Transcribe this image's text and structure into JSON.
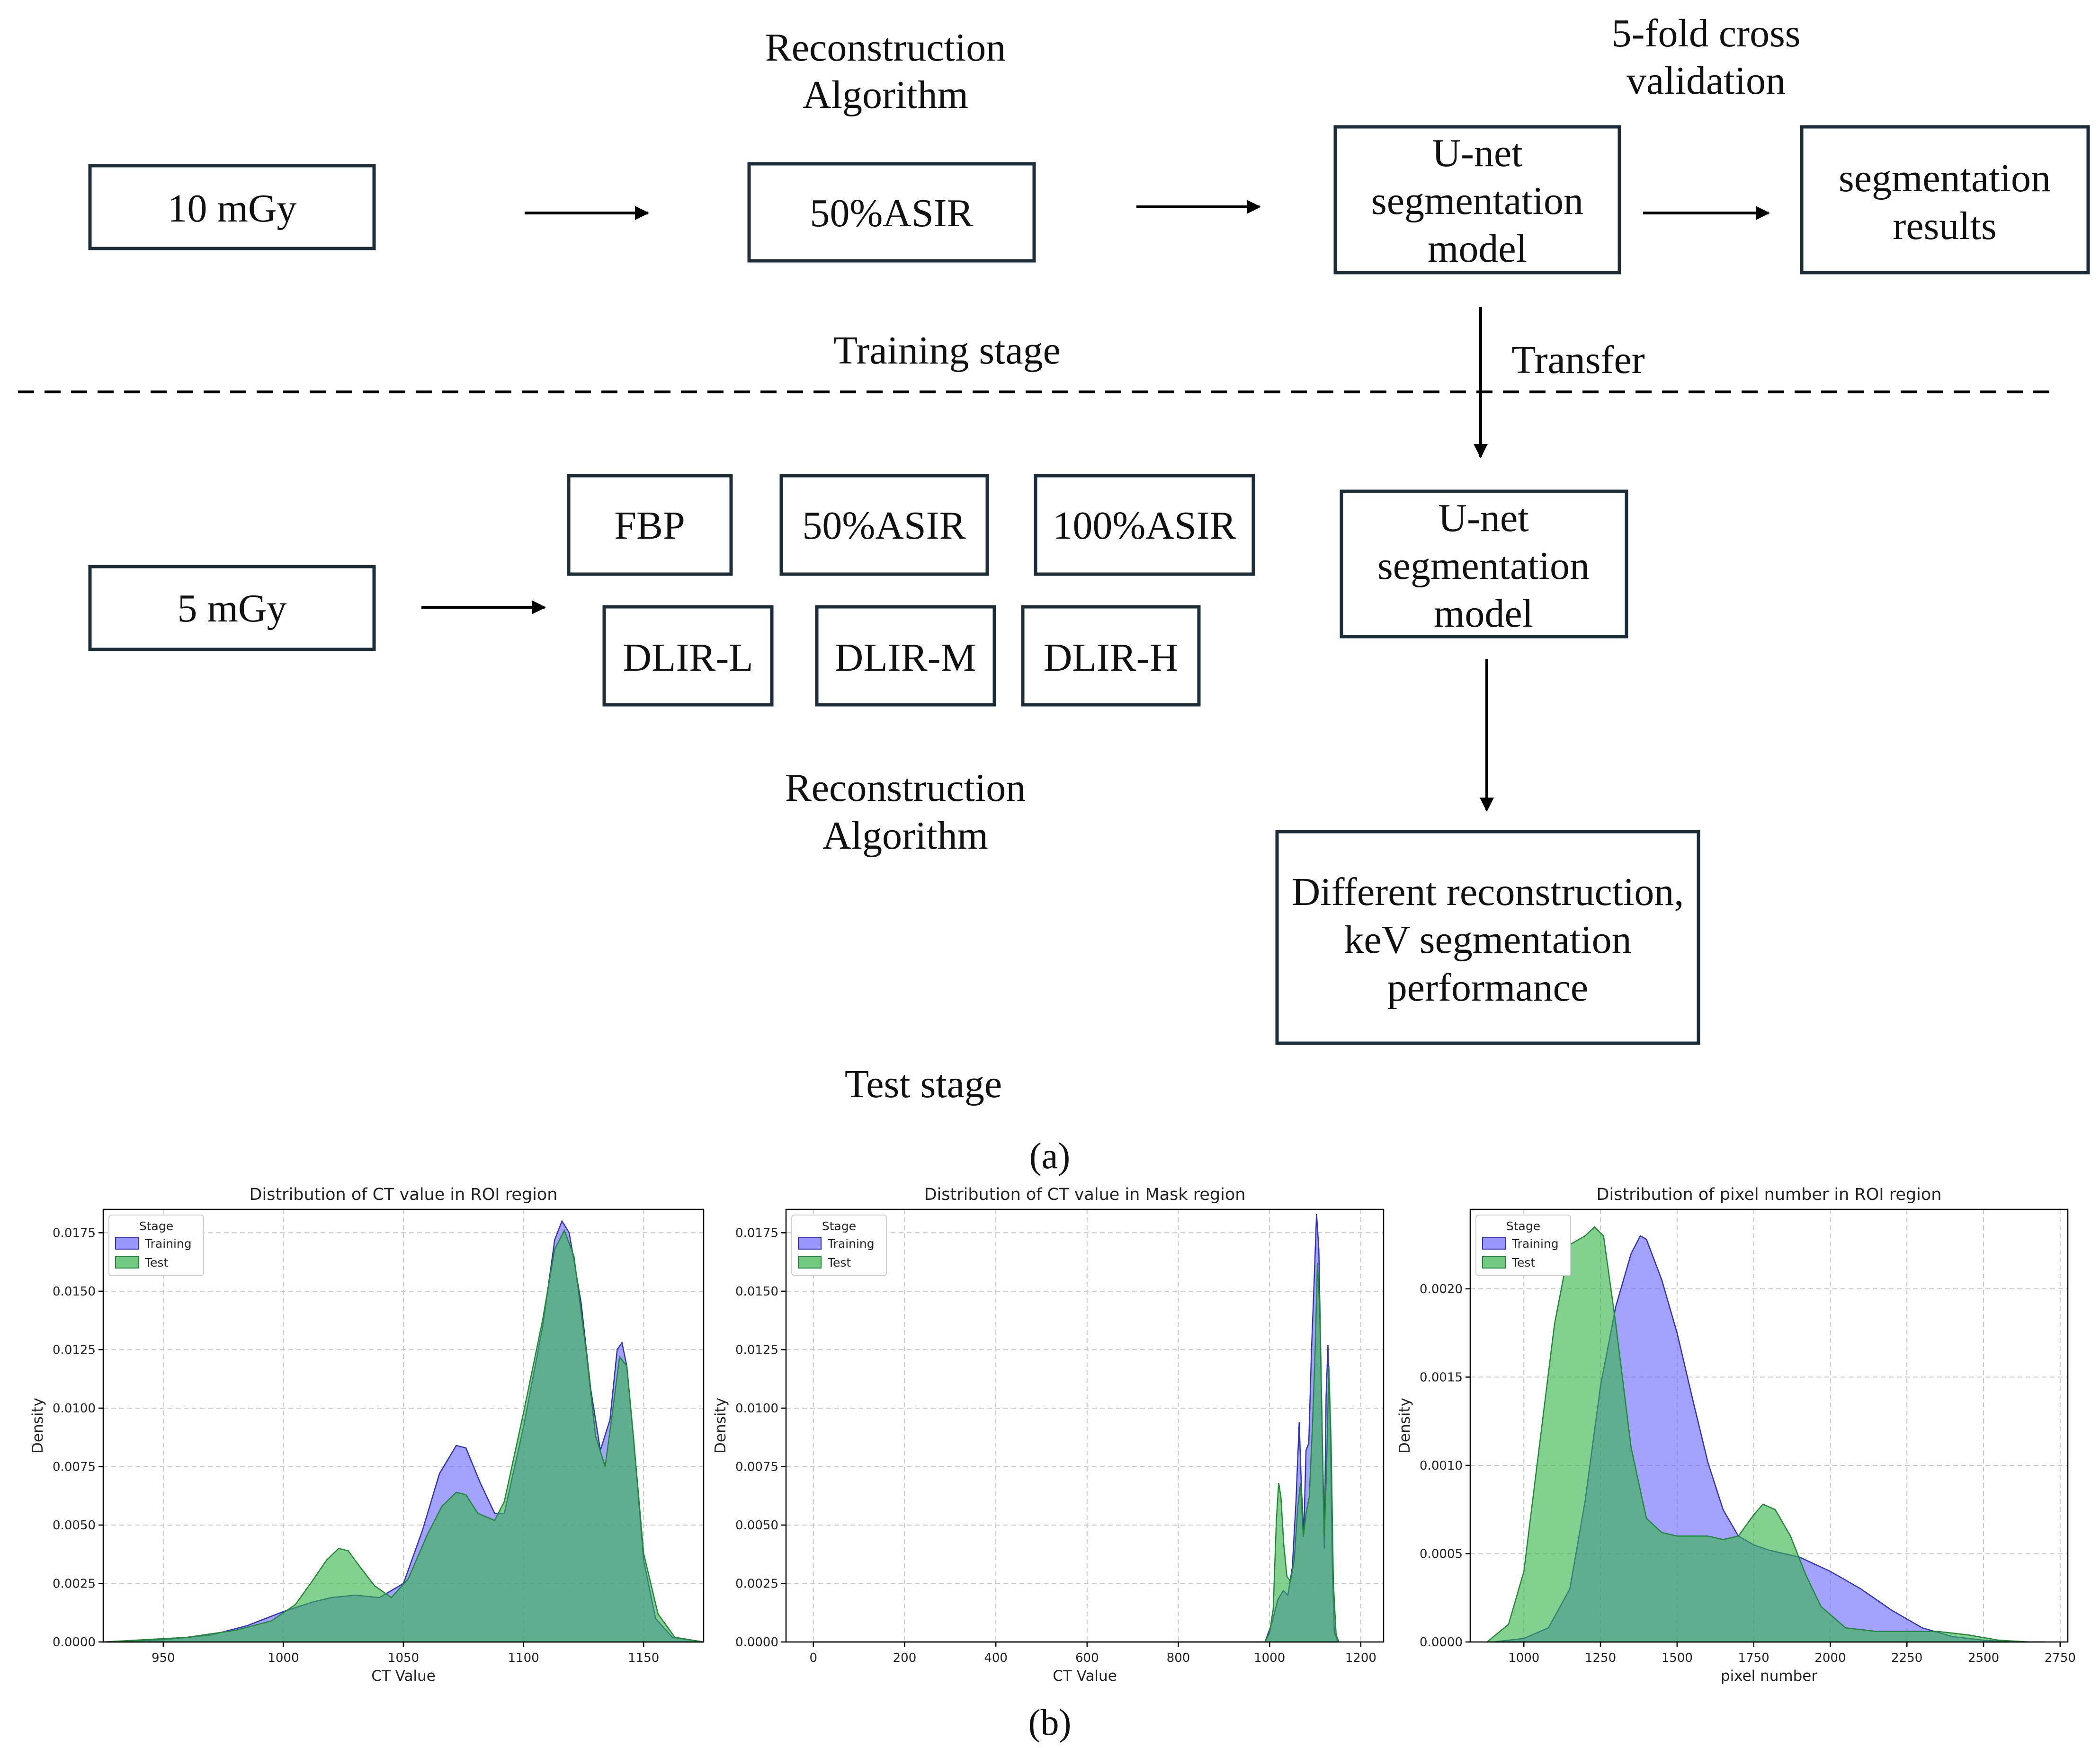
{
  "panel_a": {
    "caption": "(a)",
    "training": {
      "stage_label": "Training stage",
      "dose": "10 mGy",
      "recon_heading": [
        "Reconstruction",
        "Algorithm"
      ],
      "recon_box": "50%ASIR",
      "cv_heading": [
        "5-fold cross",
        "validation"
      ],
      "model_box": [
        "U-net",
        "segmentation",
        "model"
      ],
      "result_box": [
        "segmentation",
        "results"
      ]
    },
    "transfer_label": "Transfer",
    "test": {
      "stage_label": "Test stage",
      "dose": "5 mGy",
      "algorithms": [
        "FBP",
        "50%ASIR",
        "100%ASIR",
        "DLIR-L",
        "DLIR-M",
        "DLIR-H"
      ],
      "recon_heading": [
        "Reconstruction",
        "Algorithm"
      ],
      "model_box": [
        "U-net",
        "segmentation",
        "model"
      ],
      "performance_box": [
        "Different reconstruction,",
        "keV segmentation",
        "performance"
      ]
    }
  },
  "panel_b": {
    "caption": "(b)"
  },
  "colors": {
    "training": "#6b6bff",
    "test": "#36b44a",
    "overlap": "#2e8b8b",
    "training_line": "#3030c8",
    "test_line": "#1e8a32"
  },
  "chart_data": [
    {
      "type": "area",
      "title": "Distribution of CT value in ROI region",
      "xlabel": "CT Value",
      "ylabel": "Density",
      "xlim": [
        925,
        1175
      ],
      "ylim": [
        0,
        0.0185
      ],
      "xticks": [
        950,
        1000,
        1050,
        1100,
        1150
      ],
      "yticks": [
        0.0,
        0.0025,
        0.005,
        0.0075,
        0.01,
        0.0125,
        0.015,
        0.0175
      ],
      "ytick_labels": [
        "0.0000",
        "0.0025",
        "0.0050",
        "0.0075",
        "0.0100",
        "0.0125",
        "0.0150",
        "0.0175"
      ],
      "xtick_labels": [
        "950",
        "1000",
        "1050",
        "1100",
        "1150"
      ],
      "legend": {
        "title": "Stage",
        "entries": [
          "Training",
          "Test"
        ],
        "position": "top-left"
      },
      "series": [
        {
          "name": "Training",
          "x": [
            925,
            950,
            970,
            985,
            1000,
            1012,
            1020,
            1030,
            1040,
            1050,
            1058,
            1065,
            1072,
            1076,
            1082,
            1088,
            1092,
            1100,
            1108,
            1113,
            1116,
            1119,
            1124,
            1128,
            1132,
            1136,
            1139,
            1141,
            1143,
            1146,
            1150,
            1155,
            1162,
            1175
          ],
          "y": [
            0,
            0.0001,
            0.0003,
            0.0007,
            0.0013,
            0.0017,
            0.0019,
            0.002,
            0.0019,
            0.0025,
            0.0048,
            0.0072,
            0.0084,
            0.0083,
            0.0068,
            0.0055,
            0.0055,
            0.0092,
            0.0135,
            0.0172,
            0.018,
            0.0175,
            0.0145,
            0.0108,
            0.0082,
            0.0095,
            0.0125,
            0.0128,
            0.0118,
            0.0085,
            0.0035,
            0.001,
            0.0002,
            0
          ]
        },
        {
          "name": "Test",
          "x": [
            925,
            960,
            980,
            995,
            1005,
            1012,
            1018,
            1023,
            1027,
            1032,
            1038,
            1045,
            1052,
            1060,
            1066,
            1072,
            1076,
            1081,
            1088,
            1092,
            1100,
            1108,
            1113,
            1117,
            1121,
            1126,
            1130,
            1134,
            1137,
            1140,
            1143,
            1146,
            1150,
            1156,
            1163,
            1175
          ],
          "y": [
            0,
            0.0002,
            0.0005,
            0.0009,
            0.0016,
            0.0026,
            0.0035,
            0.004,
            0.0039,
            0.0032,
            0.0024,
            0.0019,
            0.0027,
            0.0046,
            0.0058,
            0.0064,
            0.0063,
            0.0055,
            0.0052,
            0.006,
            0.0098,
            0.0138,
            0.0168,
            0.0176,
            0.0165,
            0.0125,
            0.0088,
            0.0075,
            0.0098,
            0.0122,
            0.0118,
            0.0085,
            0.0038,
            0.0012,
            0.0002,
            0
          ]
        }
      ]
    },
    {
      "type": "area",
      "title": "Distribution of CT value in Mask region",
      "xlabel": "CT Value",
      "ylabel": "Density",
      "xlim": [
        -60,
        1250
      ],
      "ylim": [
        0,
        0.0185
      ],
      "xticks": [
        0,
        200,
        400,
        600,
        800,
        1000,
        1200
      ],
      "xtick_labels": [
        "0",
        "200",
        "400",
        "600",
        "800",
        "1000",
        "1200"
      ],
      "yticks": [
        0.0,
        0.0025,
        0.005,
        0.0075,
        0.01,
        0.0125,
        0.015,
        0.0175
      ],
      "ytick_labels": [
        "0.0000",
        "0.0025",
        "0.0050",
        "0.0075",
        "0.0100",
        "0.0125",
        "0.0150",
        "0.0175"
      ],
      "legend": {
        "title": "Stage",
        "entries": [
          "Training",
          "Test"
        ],
        "position": "top-left"
      },
      "series": [
        {
          "name": "Training",
          "x": [
            0,
            990,
            1005,
            1018,
            1030,
            1040,
            1050,
            1058,
            1065,
            1070,
            1075,
            1080,
            1086,
            1092,
            1097,
            1103,
            1108,
            1112,
            1116,
            1120,
            1124,
            1128,
            1133,
            1138,
            1142,
            1150
          ],
          "y": [
            0,
            0,
            0.0008,
            0.0018,
            0.0022,
            0.002,
            0.0032,
            0.006,
            0.0094,
            0.0065,
            0.0046,
            0.0082,
            0.0085,
            0.0125,
            0.015,
            0.0183,
            0.0168,
            0.0125,
            0.0082,
            0.004,
            0.0105,
            0.0127,
            0.0095,
            0.003,
            0.0004,
            0
          ]
        },
        {
          "name": "Test",
          "x": [
            0,
            990,
            1000,
            1008,
            1015,
            1020,
            1025,
            1031,
            1038,
            1046,
            1054,
            1062,
            1068,
            1074,
            1080,
            1087,
            1094,
            1100,
            1105,
            1110,
            1115,
            1120,
            1125,
            1130,
            1135,
            1140,
            1146,
            1152
          ],
          "y": [
            0,
            0,
            0.0004,
            0.0014,
            0.0052,
            0.0068,
            0.0062,
            0.0042,
            0.0028,
            0.0026,
            0.0035,
            0.0058,
            0.0068,
            0.0045,
            0.0055,
            0.0062,
            0.0092,
            0.0125,
            0.0162,
            0.0142,
            0.0095,
            0.0045,
            0.0075,
            0.0118,
            0.0085,
            0.0025,
            0.0003,
            0
          ]
        }
      ]
    },
    {
      "type": "area",
      "title": "Distribution of pixel number in ROI region",
      "xlabel": "pixel number",
      "ylabel": "Density",
      "xlim": [
        825,
        2775
      ],
      "ylim": [
        0,
        0.00245
      ],
      "xticks": [
        1000,
        1250,
        1500,
        1750,
        2000,
        2250,
        2500,
        2750
      ],
      "xtick_labels": [
        "1000",
        "1250",
        "1500",
        "1750",
        "2000",
        "2250",
        "2500",
        "2750"
      ],
      "yticks": [
        0.0,
        0.0005,
        0.001,
        0.0015,
        0.002
      ],
      "ytick_labels": [
        "0.0000",
        "0.0005",
        "0.0010",
        "0.0015",
        "0.0020"
      ],
      "legend": {
        "title": "Stage",
        "entries": [
          "Training",
          "Test"
        ],
        "position": "top-left"
      },
      "series": [
        {
          "name": "Training",
          "x": [
            900,
            1000,
            1080,
            1150,
            1200,
            1250,
            1300,
            1350,
            1380,
            1400,
            1450,
            1500,
            1550,
            1600,
            1650,
            1700,
            1750,
            1800,
            1850,
            1900,
            1950,
            2000,
            2100,
            2200,
            2300,
            2400,
            2500,
            2600,
            2700
          ],
          "y": [
            0,
            2e-05,
            8e-05,
            0.0003,
            0.0008,
            0.00145,
            0.0019,
            0.0022,
            0.0023,
            0.00228,
            0.00205,
            0.00175,
            0.00138,
            0.00102,
            0.00075,
            0.0006,
            0.00055,
            0.00052,
            0.0005,
            0.00048,
            0.00044,
            0.0004,
            0.0003,
            0.00018,
            8e-05,
            3e-05,
            1e-05,
            0,
            0
          ]
        },
        {
          "name": "Test",
          "x": [
            880,
            950,
            1000,
            1050,
            1100,
            1150,
            1200,
            1230,
            1260,
            1300,
            1350,
            1400,
            1450,
            1500,
            1550,
            1600,
            1650,
            1700,
            1750,
            1780,
            1820,
            1870,
            1920,
            1970,
            2050,
            2150,
            2250,
            2350,
            2450,
            2550,
            2650
          ],
          "y": [
            0,
            0.0001,
            0.0004,
            0.0011,
            0.0018,
            0.00225,
            0.0023,
            0.00235,
            0.0023,
            0.0018,
            0.0011,
            0.0007,
            0.00062,
            0.0006,
            0.0006,
            0.0006,
            0.00058,
            0.0006,
            0.00072,
            0.00078,
            0.00075,
            0.0006,
            0.00038,
            0.0002,
            8e-05,
            6e-05,
            6e-05,
            6e-05,
            4e-05,
            1e-05,
            0
          ]
        }
      ]
    }
  ]
}
